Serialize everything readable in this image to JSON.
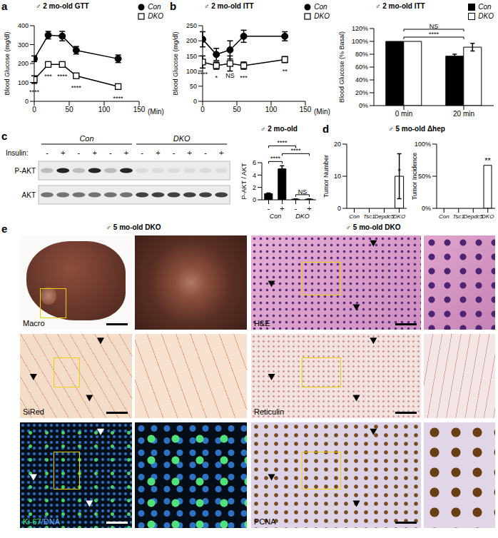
{
  "chart_data": [
    {
      "panel": "a",
      "type": "line",
      "title": "♂ 2 mo-old GTT",
      "x_label": "(Min)",
      "y_label": "Blood Glucose (mg/dl)",
      "x": [
        0,
        20,
        40,
        60,
        120
      ],
      "xlim": [
        0,
        150
      ],
      "xticks": [
        0,
        50,
        100,
        150
      ],
      "ylim": [
        0,
        400
      ],
      "yticks": [
        0,
        100,
        200,
        300,
        400
      ],
      "legend": "top right",
      "series": [
        {
          "name": "Con",
          "color": "#000000",
          "marker": "circle",
          "values": [
            225,
            350,
            345,
            270,
            225
          ],
          "errors": [
            15,
            20,
            25,
            20,
            20
          ]
        },
        {
          "name": "DKO",
          "color": "#000000",
          "marker": "square",
          "values": [
            115,
            195,
            195,
            135,
            78
          ],
          "errors": [
            20,
            10,
            10,
            8,
            5
          ]
        }
      ],
      "significance": [
        "****",
        "***",
        "****",
        "****",
        "****"
      ]
    },
    {
      "panel": "b",
      "type": "line",
      "title": "♂ 2 mo-old ITT",
      "x_label": "(Min)",
      "y_label": "Blood Glucose (mg/dl)",
      "x": [
        0,
        20,
        40,
        60,
        120
      ],
      "xlim": [
        0,
        150
      ],
      "xticks": [
        0,
        50,
        100,
        150
      ],
      "ylim": [
        0,
        250
      ],
      "yticks": [
        0,
        50,
        100,
        150,
        200,
        250
      ],
      "legend": "top right",
      "series": [
        {
          "name": "Con",
          "color": "#000000",
          "marker": "circle",
          "values": [
            205,
            155,
            170,
            215,
            215
          ],
          "errors": [
            25,
            20,
            30,
            20,
            15
          ]
        },
        {
          "name": "DKO",
          "color": "#000000",
          "marker": "square",
          "values": [
            130,
            118,
            125,
            118,
            138
          ],
          "errors": [
            20,
            12,
            25,
            12,
            10
          ]
        }
      ],
      "significance": [
        "****",
        "*",
        "NS",
        "***",
        "**"
      ]
    },
    {
      "type": "bar",
      "title": "♂ 2 mo-old ITT",
      "y_label": "Blood Glucose (% Basal)",
      "categories": [
        "0 min",
        "20 min"
      ],
      "ylim": [
        0,
        120
      ],
      "yticks": [
        {
          "value": 0,
          "label": "0%"
        },
        {
          "value": 20,
          "label": "20%"
        },
        {
          "value": 40,
          "label": "40%"
        },
        {
          "value": 60,
          "label": "60%"
        },
        {
          "value": 80,
          "label": "80%"
        },
        {
          "value": 100,
          "label": "100%"
        },
        {
          "value": 120,
          "label": "120%"
        }
      ],
      "legend": "top right",
      "series": [
        {
          "name": "Con",
          "color": "#000000",
          "values": [
            100,
            77
          ],
          "errors": [
            0,
            3
          ]
        },
        {
          "name": "DKO",
          "color": "#ffffff",
          "values": [
            100,
            91
          ],
          "errors": [
            0,
            6
          ]
        }
      ],
      "comparisons": [
        {
          "series": "Con",
          "from": 0,
          "to": 1,
          "label": "****"
        },
        {
          "series": "DKO",
          "from": 0,
          "to": 1,
          "label": "NS"
        }
      ]
    },
    {
      "type": "bar",
      "title": "♂ 2 mo-old",
      "y_label": "P-AKT / AKT",
      "categories": [
        "-",
        "+",
        "-",
        "+"
      ],
      "groups": [
        {
          "label": "Con",
          "from": 0,
          "to": 1
        },
        {
          "label": "DKO",
          "from": 2,
          "to": 3
        }
      ],
      "values": [
        1,
        5,
        0.1,
        0.1
      ],
      "errors": [
        0.1,
        0.5,
        0.03,
        0.03
      ],
      "colors": [
        "#000000",
        "#000000",
        "#ffffff",
        "#ffffff"
      ],
      "ylim": [
        0,
        6
      ],
      "yticks": [
        0,
        2,
        4,
        6
      ],
      "comparisons": [
        {
          "from": 0,
          "to": 1,
          "label": "****"
        },
        {
          "from": 1,
          "to": 3,
          "label": "****"
        },
        {
          "from": 0,
          "to": 2,
          "label": "****"
        },
        {
          "from": 2,
          "to": 3,
          "label": "NS"
        }
      ]
    },
    {
      "panel": "d",
      "type": "bar",
      "title": "♂ 5 mo-old Δhep",
      "y_label": "Tumor Number",
      "categories": [
        "Con",
        "Tsc1",
        "Depdc5",
        "DKO"
      ],
      "values": [
        0,
        0,
        0,
        10
      ],
      "errors": [
        0,
        0,
        0,
        7
      ],
      "color": "#ffffff",
      "ylim": [
        0,
        20
      ],
      "yticks": [
        0,
        10,
        20
      ],
      "significance": [
        null,
        null,
        null,
        "*"
      ]
    },
    {
      "type": "bar",
      "y_label": "Tumor Incidence",
      "categories": [
        "Con",
        "Tsc1",
        "Depdc5",
        "DKO"
      ],
      "values": [
        0,
        0,
        0,
        67
      ],
      "color": "#ffffff",
      "ylim": [
        0,
        100
      ],
      "yticks": [
        {
          "value": 0,
          "label": "0%"
        },
        {
          "value": 50,
          "label": "50%"
        },
        {
          "value": 100,
          "label": "100%"
        }
      ],
      "significance": [
        null,
        null,
        null,
        "**"
      ]
    }
  ],
  "blot": {
    "panel": "c",
    "insulin_label": "Insulin:",
    "groups": [
      "Con",
      "DKO"
    ],
    "lanes_per_group": 6,
    "signs": [
      "-",
      "+"
    ],
    "rows": [
      "P-AKT",
      "AKT"
    ]
  },
  "images": {
    "panel": "e",
    "header": "♂ 5 mo-old DKO",
    "tiles": [
      {
        "label": "Macro"
      },
      {
        "label": "H&E"
      },
      {
        "label": "SiRed"
      },
      {
        "label": "Reticulin"
      },
      {
        "label": "Ki-67/DNA"
      },
      {
        "label": "PCNA"
      }
    ]
  }
}
